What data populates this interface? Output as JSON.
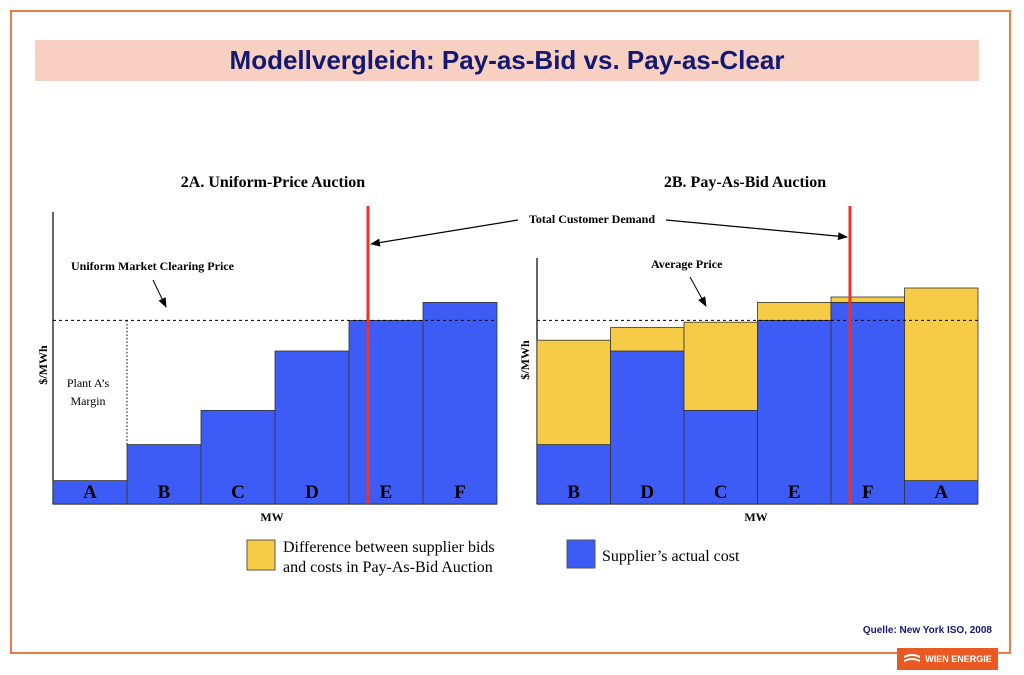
{
  "slide": {
    "title": "Modellvergleich: Pay-as-Bid vs. Pay-as-Clear",
    "source": "Quelle:  New York ISO, 2008",
    "logo_text": "WIEN ENERGIE"
  },
  "colors": {
    "frame": "#ee7a4a",
    "title_bg": "#f8d0c2",
    "title_text": "#141870",
    "cost_blue": "#3d5cf5",
    "difference_yellow": "#f6cb45",
    "demand_line": "#e8332a"
  },
  "chart_data": [
    {
      "type": "bar",
      "title": "2A. Uniform-Price Auction",
      "xlabel": "MW",
      "ylabel": "$/MWh",
      "categories": [
        "A",
        "B",
        "C",
        "D",
        "E",
        "F"
      ],
      "series": [
        {
          "name": "Supplier’s actual cost",
          "values": [
            13,
            33,
            52,
            85,
            102,
            112
          ]
        }
      ],
      "ylim": [
        0,
        160
      ],
      "clearing_price": 102,
      "annotations": {
        "clearing_price_label": "Uniform Market Clearing Price",
        "margin_label_1": "Plant A’s",
        "margin_label_2": "Margin",
        "demand_label": "Total Customer Demand"
      },
      "demand_position": "within E"
    },
    {
      "type": "bar",
      "title": "2B. Pay-As-Bid Auction",
      "xlabel": "MW",
      "ylabel": "$/MWh",
      "categories": [
        "B",
        "D",
        "C",
        "E",
        "F",
        "A"
      ],
      "series": [
        {
          "name": "Supplier’s actual cost",
          "values": [
            33,
            85,
            52,
            102,
            112,
            13
          ]
        },
        {
          "name": "Difference between supplier bids and costs in Pay-As-Bid Auction",
          "values": [
            58,
            13,
            49,
            10,
            3,
            107
          ]
        }
      ],
      "ylim": [
        0,
        140
      ],
      "average_price": 102,
      "annotations": {
        "average_price_label": "Average Price"
      },
      "demand_position": "within F"
    }
  ],
  "legend": {
    "difference_line1": "Difference between supplier bids",
    "difference_line2": "and costs in Pay-As-Bid Auction",
    "cost": "Supplier’s actual cost"
  }
}
